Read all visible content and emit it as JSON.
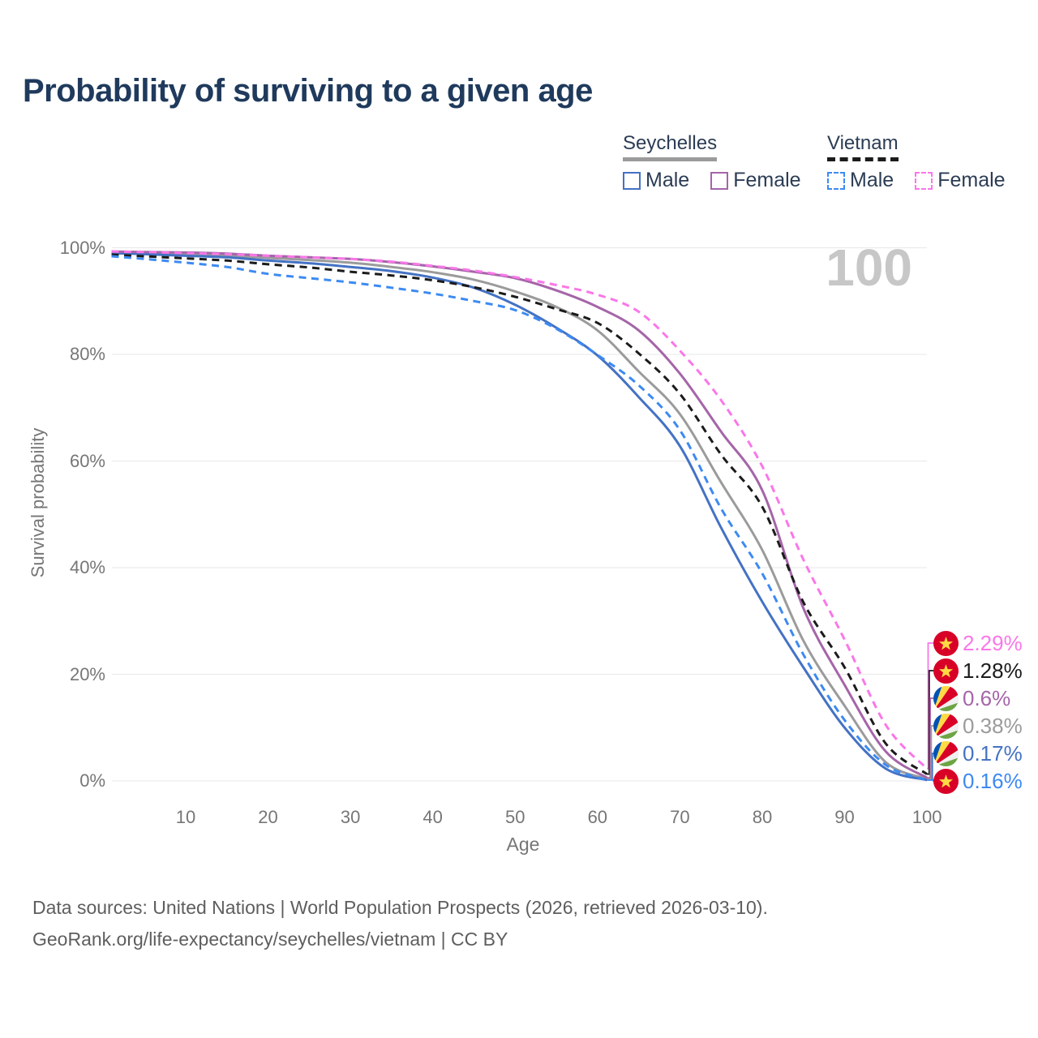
{
  "title": "Probability of surviving to a given age",
  "watermark": "100",
  "legend": {
    "groups": [
      {
        "label": "Seychelles",
        "line_style": "solid",
        "underline_color": "#9b9b9b",
        "items": [
          {
            "label": "Male",
            "color": "#4472c4",
            "dashed": false
          },
          {
            "label": "Female",
            "color": "#a565a8",
            "dashed": false
          }
        ]
      },
      {
        "label": "Vietnam",
        "line_style": "dashed",
        "underline_color": "#1b1b1b",
        "items": [
          {
            "label": "Male",
            "color": "#3d8af2",
            "dashed": true
          },
          {
            "label": "Female",
            "color": "#fa77e8",
            "dashed": true
          }
        ]
      }
    ]
  },
  "chart_data": {
    "type": "line",
    "title": "Probability of surviving to a given age",
    "xlabel": "Age",
    "ylabel": "Survival probability",
    "x_ticks": [
      10,
      20,
      30,
      40,
      50,
      60,
      70,
      80,
      90,
      100
    ],
    "y_ticks": [
      "0%",
      "20%",
      "40%",
      "60%",
      "80%",
      "100%"
    ],
    "xlim": [
      1,
      100
    ],
    "ylim": [
      0,
      100
    ],
    "grid": "horizontal-only",
    "legend_position": "top-right",
    "ages": [
      1,
      5,
      10,
      15,
      20,
      25,
      30,
      35,
      40,
      45,
      50,
      55,
      60,
      65,
      70,
      75,
      80,
      85,
      90,
      95,
      100
    ],
    "series": [
      {
        "name": "Seychelles",
        "country": "Seychelles",
        "sex": "Both",
        "color": "#9b9b9b",
        "dash": "solid",
        "end_label": "0.38%",
        "end_value_pct": 0.38,
        "values": [
          99.2,
          99.0,
          98.8,
          98.5,
          98.1,
          97.7,
          97.2,
          96.4,
          95.4,
          94.0,
          91.8,
          88.9,
          84.5,
          76.8,
          68.8,
          56.0,
          43.3,
          26.3,
          14.1,
          3.5,
          0.38
        ]
      },
      {
        "name": "Seychelles Male",
        "country": "Seychelles",
        "sex": "Male",
        "color": "#4472c4",
        "dash": "solid",
        "end_label": "0.17%",
        "end_value_pct": 0.17,
        "values": [
          99.0,
          98.8,
          98.5,
          98.2,
          97.6,
          97.1,
          96.4,
          95.6,
          94.4,
          92.5,
          89.3,
          85.0,
          79.8,
          72.0,
          62.8,
          47.5,
          33.6,
          21.3,
          10.0,
          2.3,
          0.17
        ]
      },
      {
        "name": "Seychelles Female",
        "country": "Seychelles",
        "sex": "Female",
        "color": "#a565a8",
        "dash": "solid",
        "end_label": "0.6%",
        "end_value_pct": 0.6,
        "values": [
          99.3,
          99.2,
          99.1,
          98.9,
          98.5,
          98.2,
          97.9,
          97.3,
          96.5,
          95.5,
          94.3,
          92.0,
          88.9,
          84.5,
          76.4,
          65.5,
          54.5,
          32.4,
          18.0,
          5.5,
          0.6
        ]
      },
      {
        "name": "Vietnam",
        "country": "Vietnam",
        "sex": "Both",
        "color": "#1b1b1b",
        "dash": "dashed",
        "end_label": "1.28%",
        "end_value_pct": 1.28,
        "values": [
          98.7,
          98.4,
          98.0,
          97.6,
          96.9,
          96.3,
          95.5,
          94.8,
          93.9,
          92.6,
          90.8,
          88.5,
          85.9,
          80.2,
          72.6,
          61.2,
          51.4,
          33.5,
          21.3,
          7.0,
          1.28
        ]
      },
      {
        "name": "Vietnam Male",
        "country": "Vietnam",
        "sex": "Male",
        "color": "#3d8af2",
        "dash": "dashed",
        "end_label": "0.16%",
        "end_value_pct": 0.16,
        "values": [
          98.4,
          97.9,
          97.2,
          96.4,
          95.1,
          94.3,
          93.5,
          92.5,
          91.4,
          90.0,
          88.3,
          84.8,
          79.9,
          74.2,
          65.8,
          51.1,
          38.9,
          23.7,
          11.4,
          3.0,
          0.16
        ]
      },
      {
        "name": "Vietnam Female",
        "country": "Vietnam",
        "sex": "Female",
        "color": "#fa77e8",
        "dash": "dashed",
        "end_label": "2.29%",
        "end_value_pct": 2.29,
        "values": [
          99.3,
          99.2,
          99.0,
          98.8,
          98.5,
          98.2,
          97.9,
          97.4,
          96.6,
          95.7,
          94.5,
          93.0,
          91.2,
          88.0,
          80.7,
          71.4,
          59.0,
          41.5,
          26.5,
          10.5,
          2.29
        ]
      }
    ]
  },
  "end_labels": [
    {
      "series": "Vietnam Female",
      "flag": "vietnam",
      "value": "2.29%",
      "color": "#fa77e8"
    },
    {
      "series": "Vietnam",
      "flag": "vietnam",
      "value": "1.28%",
      "color": "#1b1b1b"
    },
    {
      "series": "Seychelles Female",
      "flag": "seychelles",
      "value": "0.6%",
      "color": "#a565a8"
    },
    {
      "series": "Seychelles",
      "flag": "seychelles",
      "value": "0.38%",
      "color": "#9b9b9b"
    },
    {
      "series": "Seychelles Male",
      "flag": "seychelles",
      "value": "0.17%",
      "color": "#4472c4"
    },
    {
      "series": "Vietnam Male",
      "flag": "vietnam",
      "value": "0.16%",
      "color": "#3d8af2"
    }
  ],
  "footer": {
    "line1": "Data sources: United Nations | World Population Prospects (2026, retrieved 2026-03-10).",
    "line2": "GeoRank.org/life-expectancy/seychelles/vietnam | CC BY"
  }
}
